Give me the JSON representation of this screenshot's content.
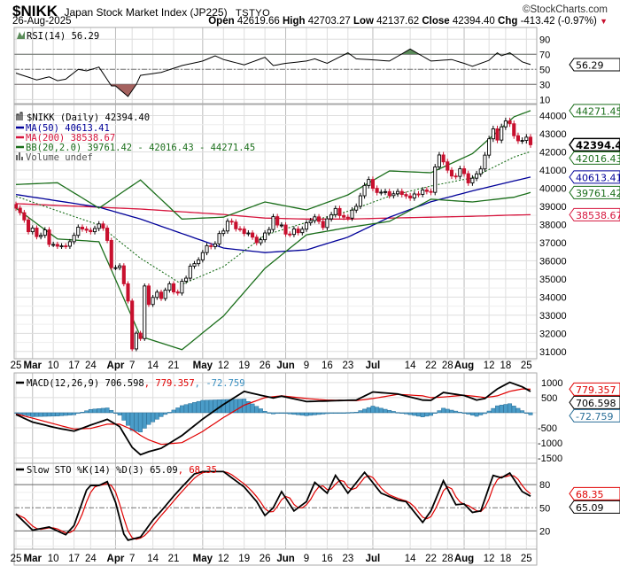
{
  "header": {
    "symbol": "$NIKK",
    "name": "Japan Stock Market Index (JP225)",
    "exchange": "TSTYO",
    "copyright": "©StockCharts.com",
    "date": "26-Aug-2025",
    "open_label": "Open",
    "open": "42619.66",
    "high_label": "High",
    "high": "42703.27",
    "low_label": "Low",
    "low": "42137.62",
    "close_label": "Close",
    "close": "42394.40",
    "chg_label": "Chg",
    "chg": "-413.42 (-0.97%)",
    "chg_icon": "down-triangle-icon"
  },
  "colors": {
    "up": "#000000",
    "down": "#c8102e",
    "ma50": "#000099",
    "ma200": "#d6143c",
    "bb": "#1a6e1a",
    "macd_hist": "#4a9cc8",
    "rsi_over": "#5b8c5a",
    "rsi_under": "#a5625f"
  },
  "legend": {
    "rsi": "RSI(14) 56.29",
    "price": "$NIKK (Daily) 42394.40",
    "ma50": "MA(50) 40613.41",
    "ma200": "MA(200) 38538.67",
    "bb": "BB(20,2.0) 39761.42 - 42016.43 - 44271.45",
    "volume": "Volume undef",
    "macd_a": "MACD(12,26,9) 706.598",
    "macd_b": ", 779.357",
    "macd_c": ", -72.759",
    "sto_a": "Slow STO %K(14) %D(3) 65.09",
    "sto_b": ", 68.35"
  },
  "tags": {
    "bb_upper": "44271.45",
    "close": "42394.40",
    "bb_mid": "42016.43",
    "ma50": "40613.41",
    "bb_lower": "39761.42",
    "ma200": "38538.67",
    "rsi": "56.29",
    "macd": "706.598",
    "signal": "779.357",
    "hist": "-72.759",
    "k": "65.09",
    "d": "68.35"
  },
  "chart_data": {
    "type": "candlestick",
    "title": "$NIKK Japan Stock Market Index (JP225) Daily",
    "x_ticks": [
      {
        "idx": 0,
        "label": "25",
        "month": false
      },
      {
        "idx": 4,
        "label": "Mar",
        "month": true
      },
      {
        "idx": 9,
        "label": "10",
        "month": false
      },
      {
        "idx": 14,
        "label": "17",
        "month": false
      },
      {
        "idx": 18,
        "label": "24",
        "month": false
      },
      {
        "idx": 24,
        "label": "Apr",
        "month": true
      },
      {
        "idx": 28,
        "label": "7",
        "month": false
      },
      {
        "idx": 33,
        "label": "14",
        "month": false
      },
      {
        "idx": 38,
        "label": "21",
        "month": false
      },
      {
        "idx": 45,
        "label": "May",
        "month": true
      },
      {
        "idx": 50,
        "label": "12",
        "month": false
      },
      {
        "idx": 55,
        "label": "19",
        "month": false
      },
      {
        "idx": 60,
        "label": "26",
        "month": false
      },
      {
        "idx": 65,
        "label": "Jun",
        "month": true
      },
      {
        "idx": 70,
        "label": "9",
        "month": false
      },
      {
        "idx": 75,
        "label": "16",
        "month": false
      },
      {
        "idx": 80,
        "label": "23",
        "month": false
      },
      {
        "idx": 86,
        "label": "Jul",
        "month": true
      },
      {
        "idx": 95,
        "label": "14",
        "month": false
      },
      {
        "idx": 100,
        "label": "22",
        "month": false
      },
      {
        "idx": 104,
        "label": "28",
        "month": false
      },
      {
        "idx": 108,
        "label": "Aug",
        "month": true
      },
      {
        "idx": 114,
        "label": "12",
        "month": false
      },
      {
        "idx": 118,
        "label": "18",
        "month": false
      },
      {
        "idx": 123,
        "label": "25",
        "month": false
      }
    ],
    "price": {
      "ylim": [
        30600,
        44610
      ],
      "y_ticks": [
        31000,
        32000,
        33000,
        34000,
        35000,
        36000,
        37000,
        38000,
        39000,
        40000,
        41000,
        42000,
        43000,
        44000
      ],
      "closes": [
        38900,
        38650,
        38250,
        37600,
        37800,
        37330,
        37400,
        37700,
        36900,
        36900,
        36800,
        36820,
        36800,
        37050,
        37400,
        37850,
        37750,
        37680,
        37600,
        37780,
        38030,
        37800,
        37120,
        35620,
        35620,
        35720,
        34730,
        33780,
        31140,
        32010,
        31710,
        34610,
        33590,
        33980,
        34270,
        33920,
        34380,
        34730,
        34280,
        34220,
        34870,
        35040,
        35700,
        35840,
        36050,
        36450,
        36830,
        36780,
        36930,
        37500,
        37640,
        38180,
        38130,
        37760,
        37750,
        37500,
        37530,
        37300,
        36990,
        37160,
        37530,
        37720,
        38430,
        37970,
        37970,
        37470,
        37450,
        37750,
        37550,
        37740,
        38090,
        38210,
        38420,
        38170,
        37830,
        38310,
        38540,
        38880,
        38490,
        38400,
        38350,
        38790,
        39000,
        39580,
        40150,
        40480,
        39990,
        39760,
        39780,
        39810,
        39590,
        39690,
        39820,
        39650,
        39570,
        39460,
        39680,
        39660,
        39900,
        39820,
        39770,
        41170,
        41830,
        41450,
        40990,
        40670,
        40650,
        41070,
        40800,
        40290,
        40550,
        40790,
        41060,
        41820,
        42720,
        43270,
        42650,
        43380,
        43710,
        43550,
        42890,
        42610,
        42630,
        42810,
        42394.4
      ],
      "first_open": 39100,
      "overlay_idx": [
        0,
        10,
        20,
        30,
        40,
        50,
        60,
        70,
        80,
        90,
        100,
        110,
        120,
        124
      ],
      "ma50": [
        39650,
        39300,
        38950,
        38300,
        37500,
        36700,
        36450,
        36600,
        37300,
        38400,
        39250,
        39850,
        40400,
        40613.41
      ],
      "ma200": [
        39150,
        39050,
        38950,
        38850,
        38700,
        38550,
        38350,
        38300,
        38300,
        38350,
        38400,
        38450,
        38520,
        38538.67
      ],
      "bb_upper": [
        40200,
        40300,
        38900,
        40450,
        38300,
        38400,
        39240,
        38800,
        39630,
        40950,
        40850,
        41900,
        43930,
        44271.45
      ],
      "bb_lower": [
        38900,
        37200,
        37050,
        31830,
        31100,
        32950,
        35580,
        37430,
        37830,
        38170,
        39390,
        39240,
        39500,
        39761.42
      ]
    },
    "rsi": {
      "ylim": [
        4.5,
        105.6
      ],
      "y_ticks": [
        10,
        30,
        50,
        70,
        90
      ],
      "levels": [
        30,
        50,
        70
      ],
      "points": [
        [
          0,
          45
        ],
        [
          5,
          36
        ],
        [
          8,
          40
        ],
        [
          10,
          35
        ],
        [
          12,
          37
        ],
        [
          15,
          50
        ],
        [
          17,
          48
        ],
        [
          20,
          53
        ],
        [
          23,
          28
        ],
        [
          24,
          28
        ],
        [
          27,
          14
        ],
        [
          29,
          30
        ],
        [
          30,
          42
        ],
        [
          35,
          46
        ],
        [
          40,
          55
        ],
        [
          45,
          61
        ],
        [
          48,
          68
        ],
        [
          50,
          63
        ],
        [
          55,
          56
        ],
        [
          60,
          66
        ],
        [
          62,
          55
        ],
        [
          65,
          58
        ],
        [
          70,
          61
        ],
        [
          72,
          64
        ],
        [
          75,
          58
        ],
        [
          80,
          72
        ],
        [
          82,
          64
        ],
        [
          85,
          63
        ],
        [
          90,
          61
        ],
        [
          95,
          77
        ],
        [
          100,
          61
        ],
        [
          105,
          63
        ],
        [
          108,
          58
        ],
        [
          110,
          54
        ],
        [
          114,
          62
        ],
        [
          116,
          72
        ],
        [
          117,
          68
        ],
        [
          119,
          72
        ],
        [
          120,
          68
        ],
        [
          122,
          60
        ],
        [
          124,
          56.29
        ]
      ]
    },
    "macd": {
      "ylim": [
        -1675,
        1320
      ],
      "y_ticks": [
        1000,
        500,
        -500,
        -1000,
        -1500
      ],
      "macd": [
        [
          0,
          -60
        ],
        [
          4,
          -310
        ],
        [
          10,
          -510
        ],
        [
          14,
          -610
        ],
        [
          18,
          -410
        ],
        [
          22,
          -220
        ],
        [
          25,
          -460
        ],
        [
          28,
          -1150
        ],
        [
          30,
          -1390
        ],
        [
          32,
          -1290
        ],
        [
          35,
          -1180
        ],
        [
          40,
          -755
        ],
        [
          45,
          -210
        ],
        [
          50,
          275
        ],
        [
          55,
          705
        ],
        [
          60,
          550
        ],
        [
          62,
          490
        ],
        [
          64,
          550
        ],
        [
          70,
          370
        ],
        [
          75,
          390
        ],
        [
          82,
          420
        ],
        [
          86,
          690
        ],
        [
          92,
          620
        ],
        [
          98,
          420
        ],
        [
          100,
          410
        ],
        [
          103,
          670
        ],
        [
          108,
          570
        ],
        [
          111,
          420
        ],
        [
          113,
          470
        ],
        [
          116,
          790
        ],
        [
          119,
          1010
        ],
        [
          122,
          860
        ],
        [
          124,
          706.598
        ]
      ],
      "signal": [
        [
          0,
          -40
        ],
        [
          4,
          -180
        ],
        [
          10,
          -400
        ],
        [
          14,
          -540
        ],
        [
          18,
          -520
        ],
        [
          22,
          -380
        ],
        [
          25,
          -380
        ],
        [
          28,
          -560
        ],
        [
          30,
          -750
        ],
        [
          32,
          -900
        ],
        [
          35,
          -1050
        ],
        [
          40,
          -990
        ],
        [
          45,
          -620
        ],
        [
          50,
          -160
        ],
        [
          55,
          250
        ],
        [
          60,
          500
        ],
        [
          64,
          560
        ],
        [
          70,
          470
        ],
        [
          75,
          420
        ],
        [
          82,
          400
        ],
        [
          86,
          470
        ],
        [
          92,
          610
        ],
        [
          98,
          560
        ],
        [
          100,
          500
        ],
        [
          103,
          520
        ],
        [
          108,
          580
        ],
        [
          111,
          540
        ],
        [
          113,
          500
        ],
        [
          116,
          560
        ],
        [
          119,
          710
        ],
        [
          122,
          790
        ],
        [
          124,
          779.357
        ]
      ]
    },
    "sto": {
      "ylim": [
        -3.7,
        107.8
      ],
      "y_ticks": [
        80,
        50,
        20
      ],
      "levels": [
        20,
        50,
        80
      ],
      "k": [
        [
          0,
          42
        ],
        [
          4,
          21
        ],
        [
          8,
          25
        ],
        [
          12,
          15
        ],
        [
          14,
          27
        ],
        [
          17,
          73
        ],
        [
          18,
          79
        ],
        [
          20,
          79
        ],
        [
          22,
          84
        ],
        [
          24,
          57
        ],
        [
          26,
          16
        ],
        [
          27,
          8
        ],
        [
          30,
          12
        ],
        [
          33,
          34
        ],
        [
          35,
          46
        ],
        [
          38,
          65
        ],
        [
          40,
          77
        ],
        [
          43,
          94
        ],
        [
          45,
          97
        ],
        [
          50,
          97
        ],
        [
          55,
          77
        ],
        [
          58,
          58
        ],
        [
          60,
          40
        ],
        [
          62,
          50
        ],
        [
          64,
          71
        ],
        [
          67,
          46
        ],
        [
          70,
          58
        ],
        [
          72,
          83
        ],
        [
          75,
          69
        ],
        [
          77,
          92
        ],
        [
          80,
          69
        ],
        [
          84,
          96
        ],
        [
          88,
          69
        ],
        [
          92,
          60
        ],
        [
          94,
          58
        ],
        [
          98,
          31
        ],
        [
          100,
          46
        ],
        [
          103,
          85
        ],
        [
          106,
          54
        ],
        [
          108,
          55
        ],
        [
          110,
          44
        ],
        [
          112,
          46
        ],
        [
          115,
          92
        ],
        [
          117,
          89
        ],
        [
          119,
          95
        ],
        [
          122,
          71
        ],
        [
          124,
          65.09
        ]
      ],
      "d_final": 68.35
    }
  }
}
